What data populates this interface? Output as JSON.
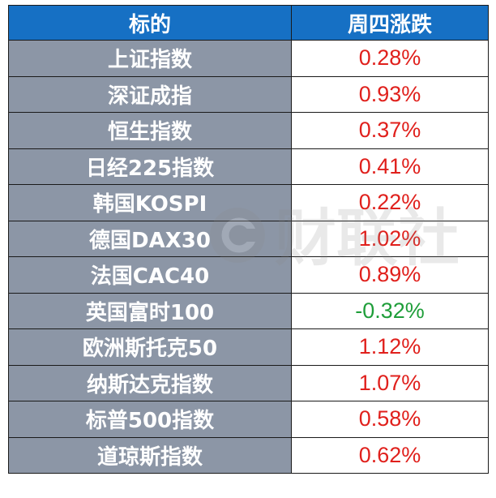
{
  "table": {
    "header": {
      "name": "标的",
      "change": "周四涨跌"
    },
    "rows": [
      {
        "name": "上证指数",
        "change": "0.28%",
        "color": "#e0201c"
      },
      {
        "name": "深证成指",
        "change": "0.93%",
        "color": "#e0201c"
      },
      {
        "name": "恒生指数",
        "change": "0.37%",
        "color": "#e0201c"
      },
      {
        "name": "日经225指数",
        "change": "0.41%",
        "color": "#e0201c"
      },
      {
        "name": "韩国KOSPI",
        "change": "0.22%",
        "color": "#e0201c"
      },
      {
        "name": "德国DAX30",
        "change": "1.02%",
        "color": "#e0201c"
      },
      {
        "name": "法国CAC40",
        "change": "0.89%",
        "color": "#e0201c"
      },
      {
        "name": "英国富时100",
        "change": "-0.32%",
        "color": "#1f9e3a"
      },
      {
        "name": "欧洲斯托克50",
        "change": "1.12%",
        "color": "#e0201c"
      },
      {
        "name": "纳斯达克指数",
        "change": "1.07%",
        "color": "#e0201c"
      },
      {
        "name": "标普500指数",
        "change": "0.58%",
        "color": "#e0201c"
      },
      {
        "name": "道琼斯指数",
        "change": "0.62%",
        "color": "#e0201c"
      }
    ]
  },
  "watermark": {
    "text": "财联社",
    "icon": "cls-logo-icon",
    "color": "#8a8a8a"
  },
  "colors": {
    "header_bg": "#1670c4",
    "name_bg": "#8c96a6",
    "up": "#e0201c",
    "down": "#1f9e3a"
  }
}
